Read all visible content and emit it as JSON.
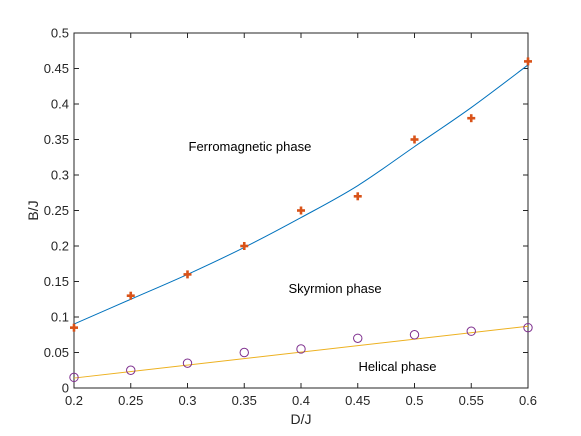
{
  "chart_data": {
    "type": "scatter",
    "xlabel": "D/J",
    "ylabel": "B/J",
    "xlim": [
      0.2,
      0.6
    ],
    "ylim": [
      0,
      0.5
    ],
    "grid": false,
    "x_ticks": [
      "0.2",
      "0.25",
      "0.3",
      "0.35",
      "0.4",
      "0.45",
      "0.5",
      "0.55",
      "0.6"
    ],
    "y_ticks": [
      "0",
      "0.05",
      "0.1",
      "0.15",
      "0.2",
      "0.25",
      "0.3",
      "0.35",
      "0.4",
      "0.45",
      "0.5"
    ],
    "series": [
      {
        "marker": "plus",
        "color": "#D95319",
        "x": [
          0.2,
          0.25,
          0.3,
          0.35,
          0.4,
          0.45,
          0.5,
          0.55,
          0.6
        ],
        "y": [
          0.085,
          0.13,
          0.16,
          0.2,
          0.25,
          0.27,
          0.35,
          0.38,
          0.46
        ]
      },
      {
        "marker": "line",
        "color": "#0072BD",
        "x": [
          0.2,
          0.25,
          0.3,
          0.35,
          0.4,
          0.45,
          0.5,
          0.55,
          0.6
        ],
        "y": [
          0.09,
          0.125,
          0.16,
          0.198,
          0.24,
          0.285,
          0.34,
          0.395,
          0.455
        ]
      },
      {
        "marker": "circle",
        "color": "#7E2F8E",
        "x": [
          0.2,
          0.25,
          0.3,
          0.35,
          0.4,
          0.45,
          0.5,
          0.55,
          0.6
        ],
        "y": [
          0.015,
          0.025,
          0.035,
          0.05,
          0.055,
          0.07,
          0.075,
          0.08,
          0.085
        ]
      },
      {
        "marker": "line",
        "color": "#EDB120",
        "x": [
          0.2,
          0.6
        ],
        "y": [
          0.014,
          0.087
        ]
      }
    ],
    "annotations": [
      {
        "text": "Ferromagnetic phase",
        "x": 0.355,
        "y": 0.34
      },
      {
        "text": "Skyrmion phase",
        "x": 0.43,
        "y": 0.14
      },
      {
        "text": "Helical phase",
        "x": 0.485,
        "y": 0.03
      }
    ]
  }
}
